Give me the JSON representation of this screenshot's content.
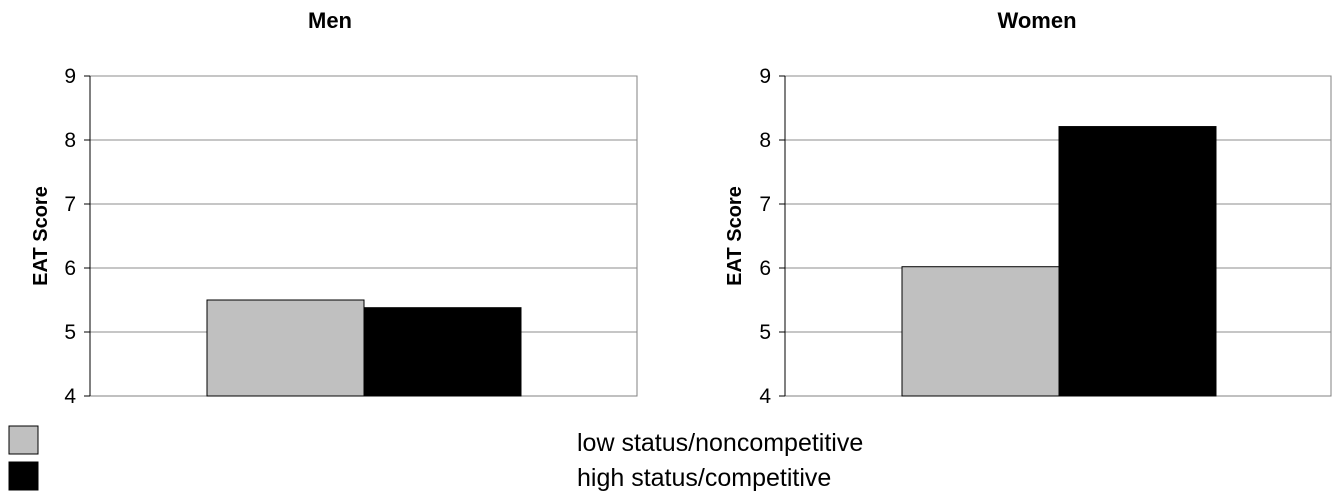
{
  "chart_data": [
    {
      "type": "bar",
      "title": "Men",
      "ylabel": "EAT Score",
      "ylim": [
        4,
        9
      ],
      "yticks": [
        "4",
        "5",
        "6",
        "7",
        "8",
        "9"
      ],
      "grid": true,
      "series": [
        {
          "name": "low status/noncompetitive",
          "values": [
            5.5
          ]
        },
        {
          "name": "high status/competitive",
          "values": [
            5.38
          ]
        }
      ]
    },
    {
      "type": "bar",
      "title": "Women",
      "ylabel": "EAT Score",
      "ylim": [
        4,
        9
      ],
      "yticks": [
        "4",
        "5",
        "6",
        "7",
        "8",
        "9"
      ],
      "grid": true,
      "series": [
        {
          "name": "low status/noncompetitive",
          "values": [
            6.02
          ]
        },
        {
          "name": "high status/competitive",
          "values": [
            8.21
          ]
        }
      ]
    }
  ],
  "legend": {
    "placement": "bottom",
    "items": [
      {
        "label": "low status/noncompetitive",
        "color": "#c0c0c0"
      },
      {
        "label": "high status/competitive",
        "color": "#000000"
      }
    ]
  },
  "colors": {
    "series": [
      "#c0c0c0",
      "#000000"
    ],
    "gridline": "#8c8c8c",
    "frame": "#808080"
  }
}
